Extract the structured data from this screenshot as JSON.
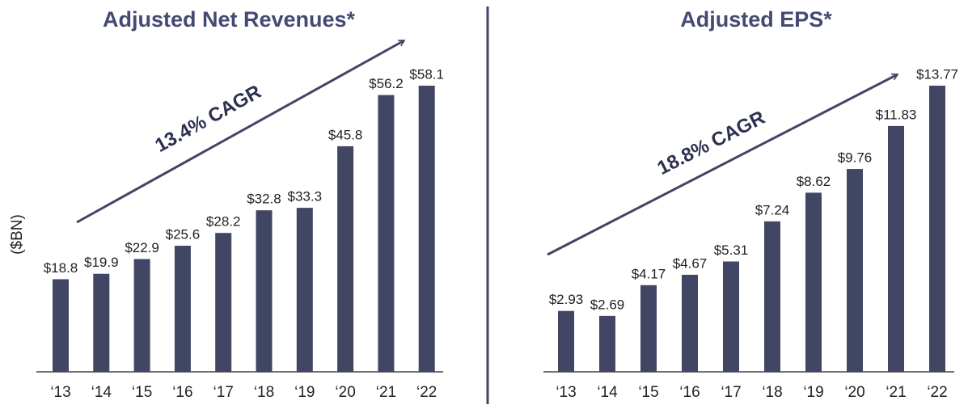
{
  "chart_data": [
    {
      "type": "bar",
      "title": "Adjusted Net Revenues*",
      "ylabel": "($BN)",
      "annotation": "13.4% CAGR",
      "categories": [
        "‘13",
        "‘14",
        "‘15",
        "‘16",
        "‘17",
        "‘18",
        "‘19",
        "‘20",
        "‘21",
        "‘22"
      ],
      "values": [
        18.8,
        19.9,
        22.9,
        25.6,
        28.2,
        32.8,
        33.3,
        45.8,
        56.2,
        58.1
      ],
      "value_labels": [
        "$18.8",
        "$19.9",
        "$22.9",
        "$25.6",
        "$28.2",
        "$32.8",
        "$33.3",
        "$45.8",
        "$56.2",
        "$58.1"
      ],
      "color": "#414665"
    },
    {
      "type": "bar",
      "title": "Adjusted EPS*",
      "annotation": "18.8% CAGR",
      "categories": [
        "‘13",
        "‘14",
        "‘15",
        "‘16",
        "‘17",
        "‘18",
        "‘19",
        "‘20",
        "‘21",
        "‘22"
      ],
      "values": [
        2.93,
        2.69,
        4.17,
        4.67,
        5.31,
        7.24,
        8.62,
        9.76,
        11.83,
        13.77
      ],
      "value_labels": [
        "$2.93",
        "$2.69",
        "$4.17",
        "$4.67",
        "$5.31",
        "$7.24",
        "$8.62",
        "$9.76",
        "$11.83",
        "$13.77"
      ],
      "color": "#414665"
    }
  ]
}
